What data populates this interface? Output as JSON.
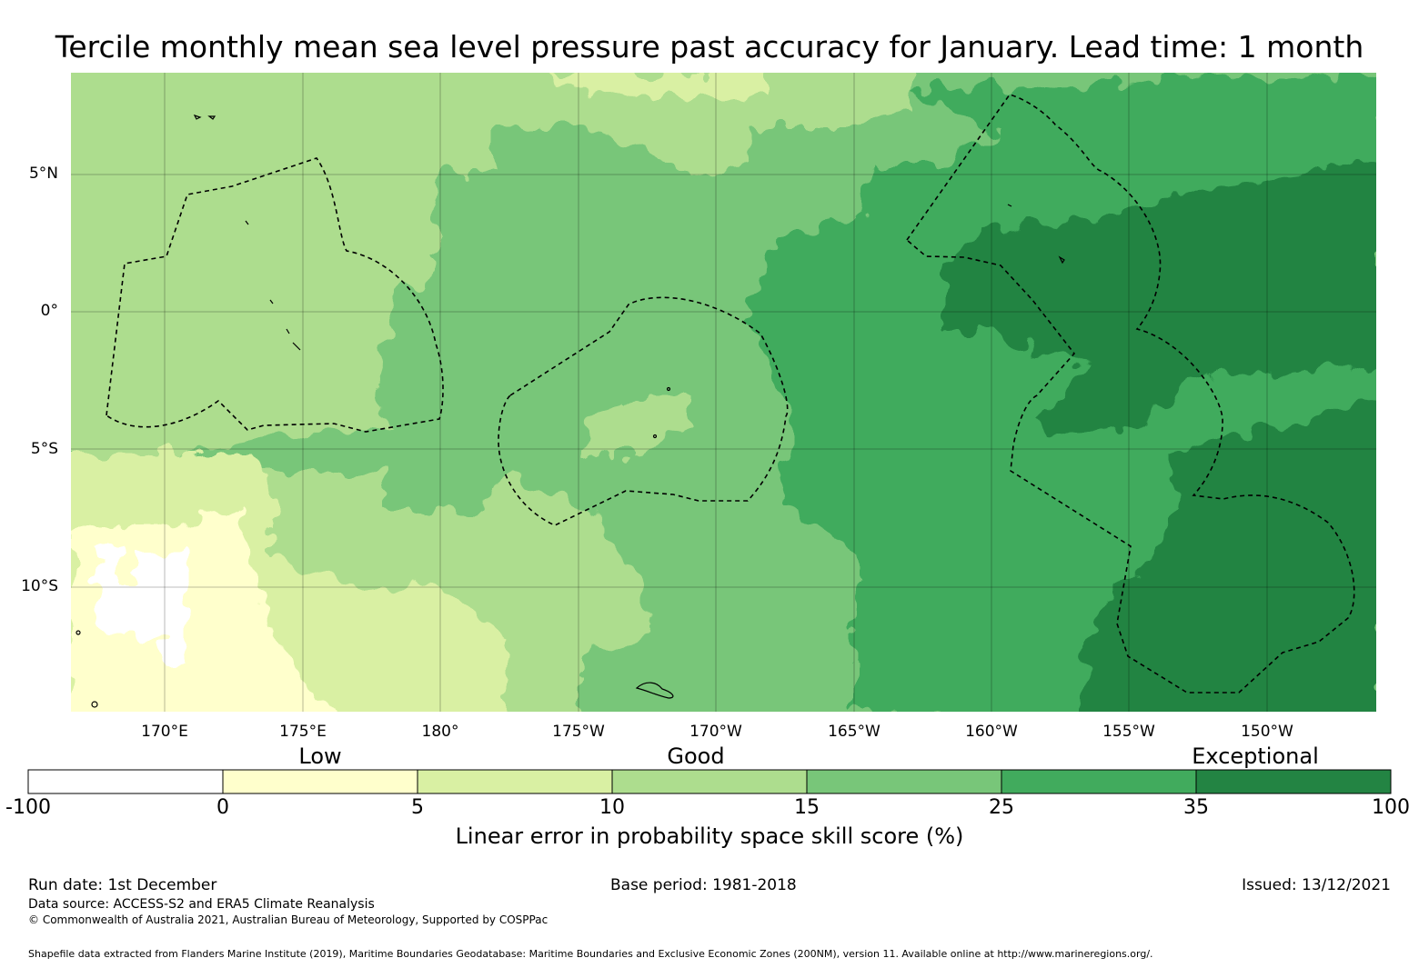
{
  "title": "Tercile monthly mean sea level pressure past accuracy for January. Lead time: 1 month",
  "map": {
    "lon_labels": [
      "170°E",
      "175°E",
      "180°",
      "175°W",
      "170°W",
      "165°W",
      "160°W",
      "155°W",
      "150°W"
    ],
    "lat_labels": [
      "5°N",
      "0°",
      "5°S",
      "10°S"
    ]
  },
  "colorbar": {
    "categories": [
      "Low",
      "Good",
      "Exceptional"
    ],
    "ticks": [
      "-100",
      "0",
      "5",
      "10",
      "15",
      "25",
      "35",
      "100"
    ],
    "colors": [
      "#ffffff",
      "#ffffcc",
      "#d9f0a3",
      "#addd8e",
      "#78c679",
      "#41ab5d",
      "#238443"
    ],
    "label": "Linear error in probability space skill score (%)"
  },
  "footer": {
    "run_date": "Run date: 1st December",
    "base_period": "Base period: 1981-2018",
    "issued": "Issued: 13/12/2021",
    "data_source": "Data source: ACCESS-S2 and ERA5 Climate Reanalysis",
    "copyright": "© Commonwealth of Australia 2021, Australian Bureau of Meteorology, Supported by COSPPac",
    "shapefile": "Shapefile data extracted from Flanders Marine Institute (2019), Maritime Boundaries Geodatabase: Maritime Boundaries and Exclusive Economic Zones (200NM), version 11. Available online at http://www.marineregions.org/."
  },
  "chart_data": {
    "type": "heatmap",
    "title": "Tercile monthly mean sea level pressure past accuracy for January. Lead time: 1 month",
    "x_range": [
      "166.6°E",
      "147.3°W"
    ],
    "y_range": [
      "8.6°N",
      "14.6°S"
    ],
    "z_bins": [
      -100,
      0,
      5,
      10,
      15,
      25,
      35,
      100
    ],
    "z_label": "Linear error in probability space skill score (%)",
    "category_bands": {
      "Low": [
        0,
        5
      ],
      "Good": [
        5,
        25
      ],
      "Exceptional": [
        35,
        100
      ]
    },
    "regions_by_category": [
      {
        "area": "west-northwest (around 170°E–180°, 0°–8°N)",
        "class_range": "10-15"
      },
      {
        "area": "southwest (around 168°E–178°E, 7°S–14°S)",
        "class_range": "0-10"
      },
      {
        "area": "central (around 180°–168°W, 0°–10°S)",
        "class_range": "15-25"
      },
      {
        "area": "east (around 165°W–147°W)",
        "class_range": "25-35"
      },
      {
        "area": "far east (around 160°W–147°W, 2°N–14°S)",
        "class_range": "35-100"
      }
    ]
  }
}
